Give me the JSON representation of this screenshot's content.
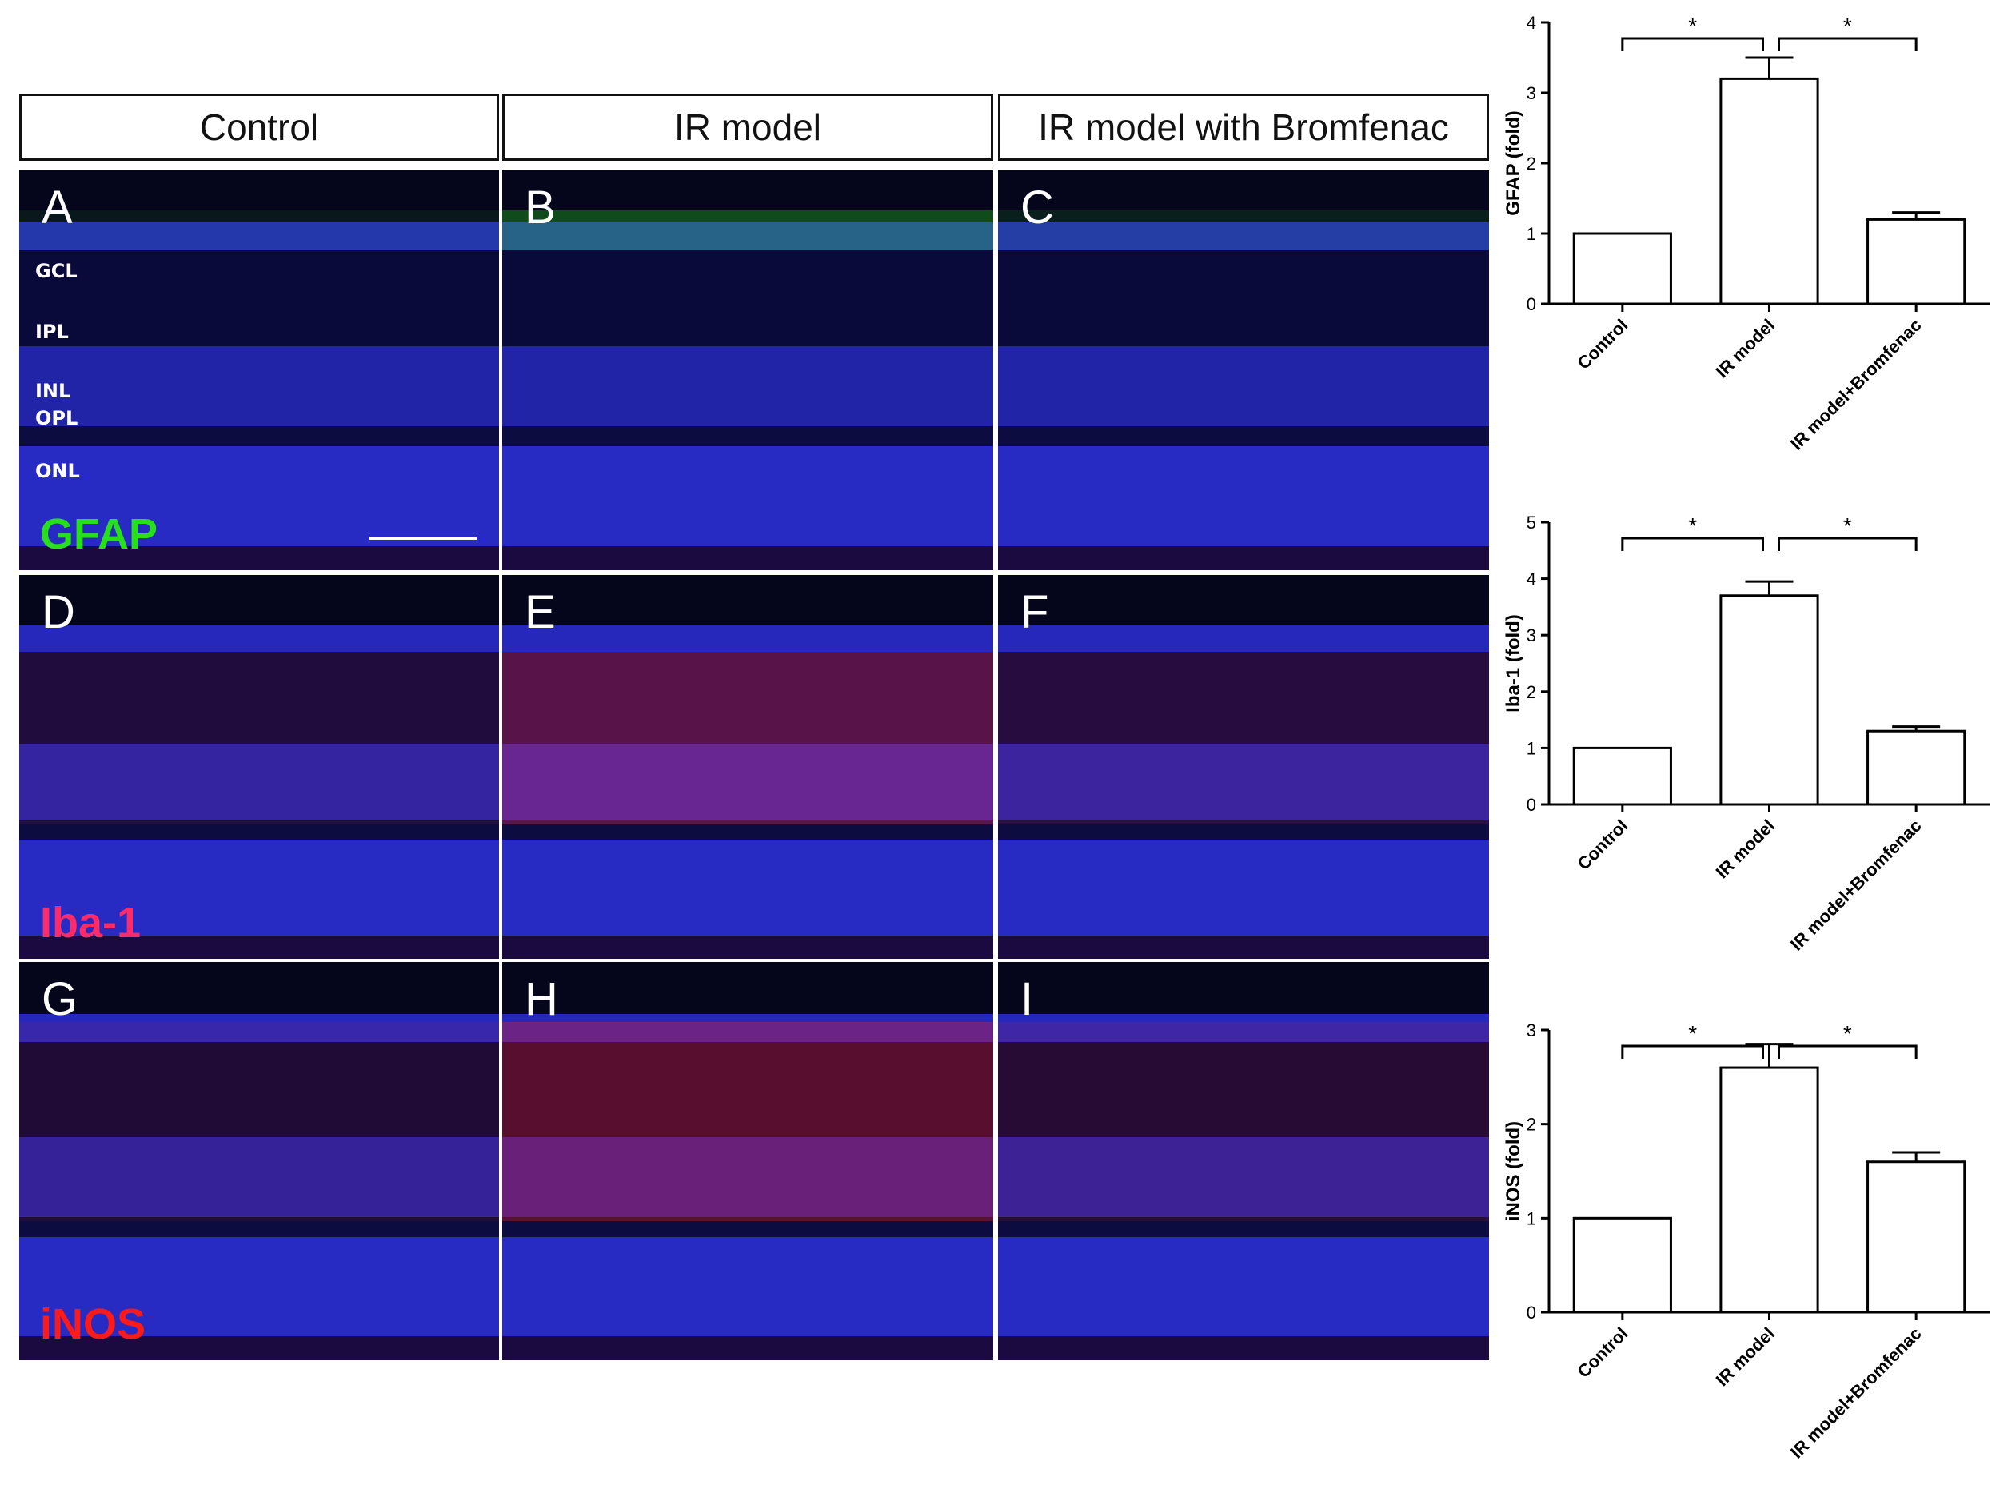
{
  "columns": [
    "Control",
    "IR model",
    "IR model with Bromfenac"
  ],
  "panels": {
    "letters": [
      "A",
      "B",
      "C",
      "D",
      "E",
      "F",
      "G",
      "H",
      "I"
    ],
    "stains": [
      {
        "name": "GFAP",
        "color": "#28e01a"
      },
      {
        "name": "Iba-1",
        "color": "#ff2a68"
      },
      {
        "name": "iNOS",
        "color": "#ff1a1a"
      }
    ],
    "layers": [
      "GCL",
      "IPL",
      "INL",
      "OPL",
      "ONL"
    ],
    "nuclear_color": "#2b2fd6",
    "background_color": "#05051c"
  },
  "chart_data": [
    {
      "type": "bar",
      "categories": [
        "Control",
        "IR model",
        "IR model+Bromfenac"
      ],
      "values": [
        1.0,
        3.2,
        1.2
      ],
      "errors": [
        0,
        0.3,
        0.1
      ],
      "ylabel": "GFAP (fold)",
      "ylim": [
        0,
        4
      ],
      "yticks": [
        0,
        1,
        2,
        3,
        4
      ],
      "significance": [
        {
          "from": "Control",
          "to": "IR model",
          "label": "*"
        },
        {
          "from": "IR model",
          "to": "IR model+Bromfenac",
          "label": "*"
        }
      ]
    },
    {
      "type": "bar",
      "categories": [
        "Control",
        "IR model",
        "IR model+Bromfenac"
      ],
      "values": [
        1.0,
        3.7,
        1.3
      ],
      "errors": [
        0,
        0.25,
        0.08
      ],
      "ylabel": "Iba-1 (fold)",
      "ylim": [
        0,
        5
      ],
      "yticks": [
        0,
        1,
        2,
        3,
        4,
        5
      ],
      "significance": [
        {
          "from": "Control",
          "to": "IR model",
          "label": "*"
        },
        {
          "from": "IR model",
          "to": "IR model+Bromfenac",
          "label": "*"
        }
      ]
    },
    {
      "type": "bar",
      "categories": [
        "Control",
        "IR model",
        "IR model+Bromfenac"
      ],
      "values": [
        1.0,
        2.6,
        1.6
      ],
      "errors": [
        0,
        0.25,
        0.1
      ],
      "ylabel": "iNOS (fold)",
      "ylim": [
        0,
        3
      ],
      "yticks": [
        0,
        1,
        2,
        3
      ],
      "significance": [
        {
          "from": "Control",
          "to": "IR model",
          "label": "*"
        },
        {
          "from": "IR model",
          "to": "IR model+Bromfenac",
          "label": "*"
        }
      ]
    }
  ]
}
